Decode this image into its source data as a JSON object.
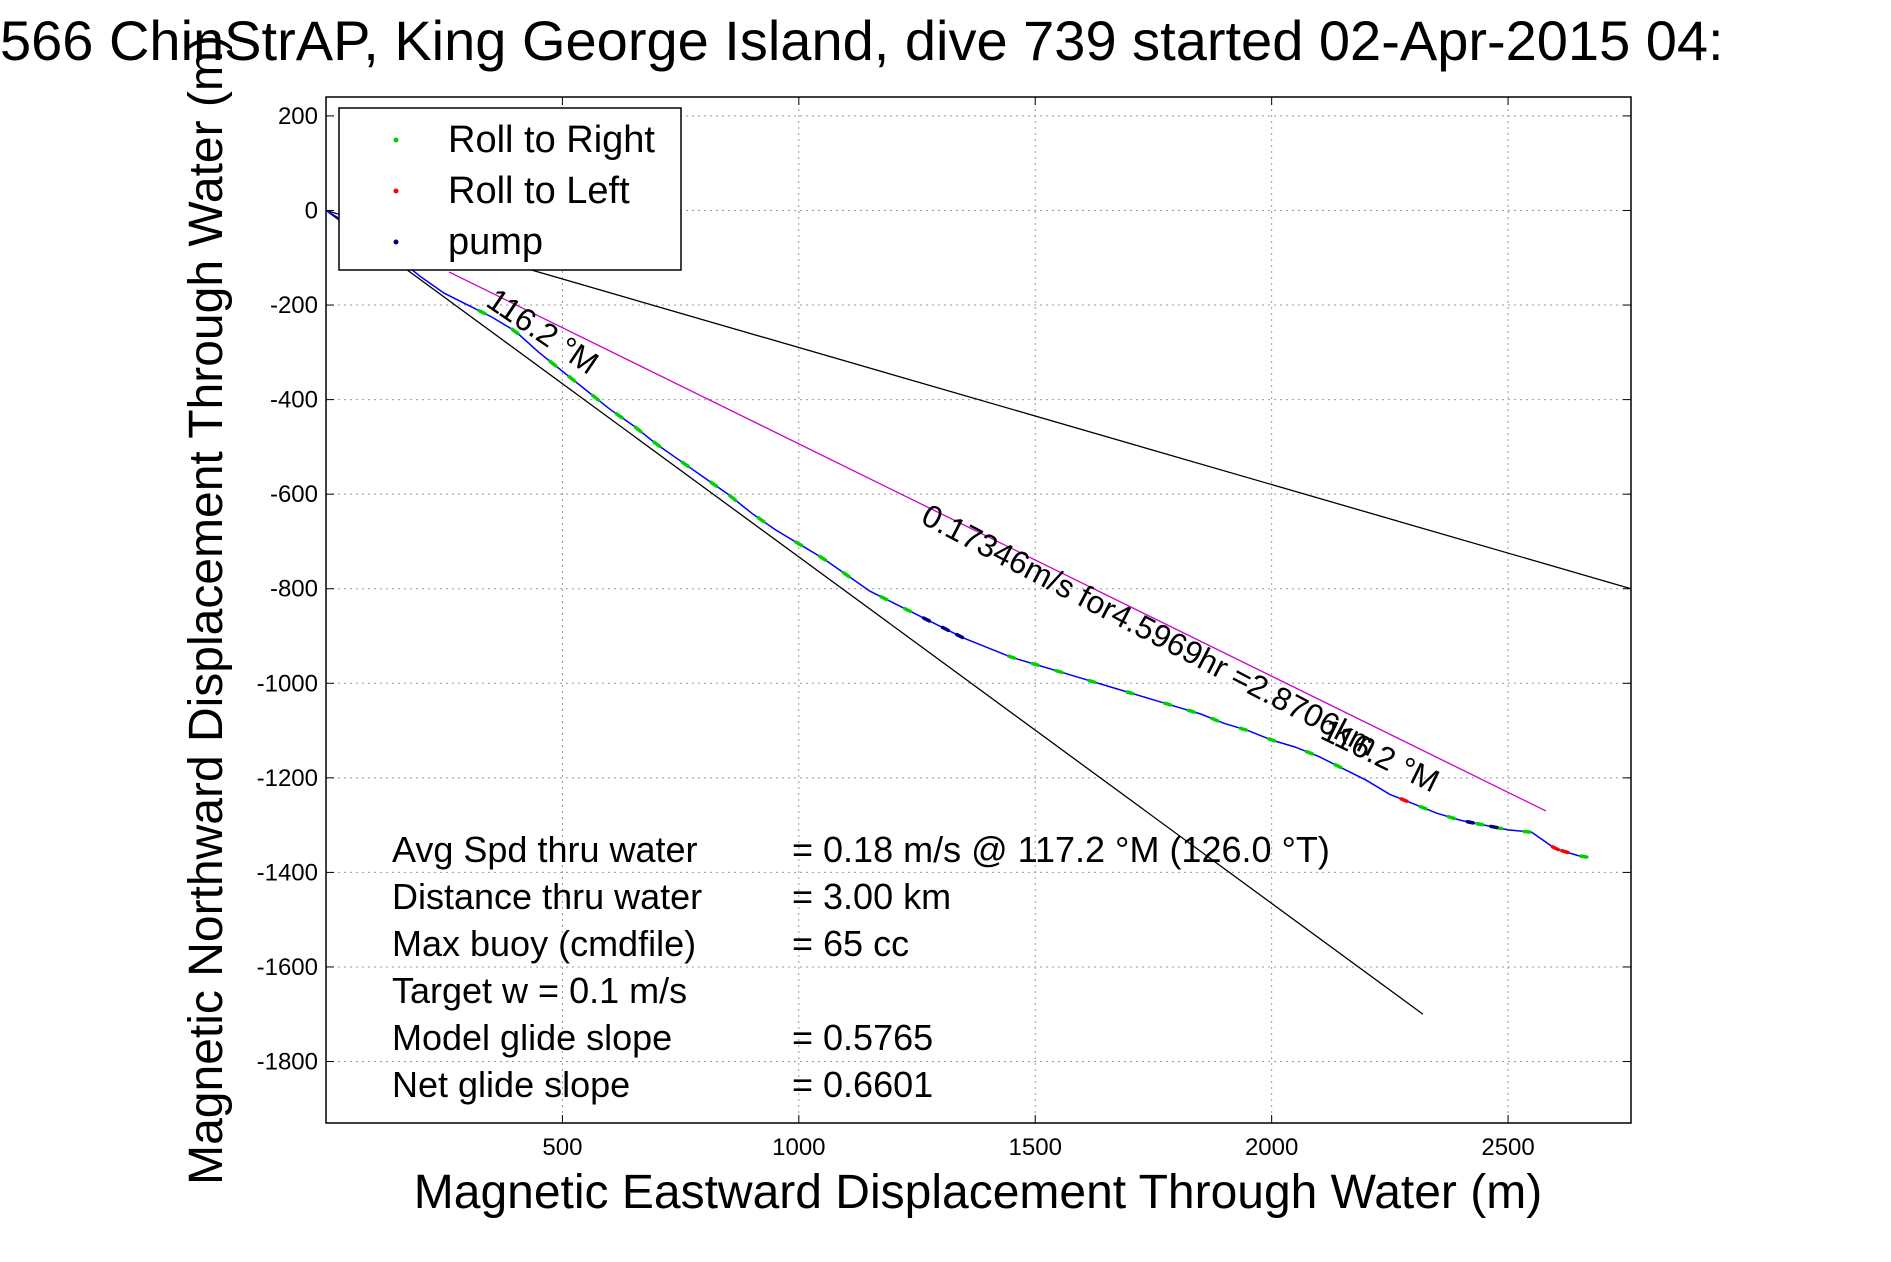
{
  "chart_data": {
    "type": "line",
    "title": "566 ChinStrAP, King George Island, dive 739 started 02-Apr-2015 04:",
    "xlabel": "Magnetic Eastward Displacement Through Water (m)",
    "ylabel": "Magnetic Northward Displacement Through Water (m)",
    "xlim": [
      0,
      2760
    ],
    "ylim": [
      -1930,
      240
    ],
    "xticks": [
      500,
      1000,
      1500,
      2000,
      2500
    ],
    "yticks": [
      200,
      0,
      -200,
      -400,
      -600,
      -800,
      -1000,
      -1200,
      -1400,
      -1600,
      -1800
    ],
    "grid": true,
    "legend_position": "top-left",
    "legend": [
      {
        "label": "Roll to Right",
        "color": "#00d000"
      },
      {
        "label": "Roll to Left",
        "color": "#ff0000"
      },
      {
        "label": "pump",
        "color": "#000080"
      }
    ],
    "track": {
      "color": "#0000ff",
      "x": [
        0,
        50,
        100,
        150,
        200,
        250,
        300,
        350,
        400,
        450,
        500,
        550,
        600,
        650,
        700,
        750,
        800,
        850,
        900,
        950,
        1000,
        1050,
        1100,
        1150,
        1200,
        1250,
        1300,
        1350,
        1400,
        1450,
        1500,
        1550,
        1600,
        1650,
        1700,
        1750,
        1800,
        1850,
        1900,
        1950,
        2000,
        2050,
        2100,
        2150,
        2200,
        2250,
        2300,
        2350,
        2400,
        2450,
        2500,
        2550,
        2600,
        2650,
        2670
      ],
      "y": [
        0,
        -30,
        -60,
        -100,
        -140,
        -175,
        -200,
        -225,
        -255,
        -300,
        -340,
        -380,
        -420,
        -455,
        -495,
        -530,
        -565,
        -600,
        -640,
        -675,
        -705,
        -735,
        -770,
        -805,
        -830,
        -855,
        -880,
        -905,
        -925,
        -945,
        -960,
        -975,
        -990,
        -1005,
        -1020,
        -1035,
        -1050,
        -1065,
        -1085,
        -1100,
        -1120,
        -1135,
        -1155,
        -1180,
        -1205,
        -1235,
        -1255,
        -1275,
        -1290,
        -1300,
        -1310,
        -1315,
        -1350,
        -1365,
        -1368
      ]
    },
    "roll_right_x": [
      330,
      400,
      480,
      520,
      570,
      620,
      660,
      700,
      760,
      820,
      860,
      920,
      1000,
      1050,
      1100,
      1180,
      1230,
      1450,
      1500,
      1550,
      1620,
      1700,
      1780,
      1830,
      1880,
      1940,
      2000,
      2080,
      2140,
      2320,
      2380,
      2440,
      2480,
      2540,
      2620,
      2660
    ],
    "roll_left_x": [
      2280,
      2600,
      2620
    ],
    "pump_x": [
      1270,
      1310,
      1340,
      2420,
      2470
    ],
    "reference_lines": [
      {
        "color": "#000000",
        "x": [
          0,
          2760
        ],
        "y": [
          0,
          -800
        ]
      },
      {
        "color": "#000000",
        "x": [
          0,
          2320
        ],
        "y": [
          0,
          -1700
        ]
      },
      {
        "color": "#cc00cc",
        "x": [
          260,
          2580
        ],
        "y": [
          -130,
          -1270
        ]
      }
    ],
    "annotations": [
      {
        "text": "0.17346m/s for4.5969hr =2.8706km",
        "x": 1255,
        "y": -660,
        "angle": 27.5
      },
      {
        "text": "116.2 °M",
        "x": 335,
        "y": -200,
        "angle": 34
      },
      {
        "text": "116.2 °M",
        "x": 2100,
        "y": -1115,
        "angle": 26
      }
    ],
    "info": [
      {
        "label": "Avg Spd thru water",
        "value": "=  0.18 m/s @ 117.2 °M (126.0 °T)"
      },
      {
        "label": "Distance thru water",
        "value": "=  3.00 km"
      },
      {
        "label": "Max buoy (cmdfile)",
        "value": "= 65 cc"
      },
      {
        "label": "Target w    = 0.1 m/s",
        "value": ""
      },
      {
        "label": "Model glide slope",
        "value": "= 0.5765"
      },
      {
        "label": "Net glide slope",
        "value": "= 0.6601"
      }
    ]
  }
}
